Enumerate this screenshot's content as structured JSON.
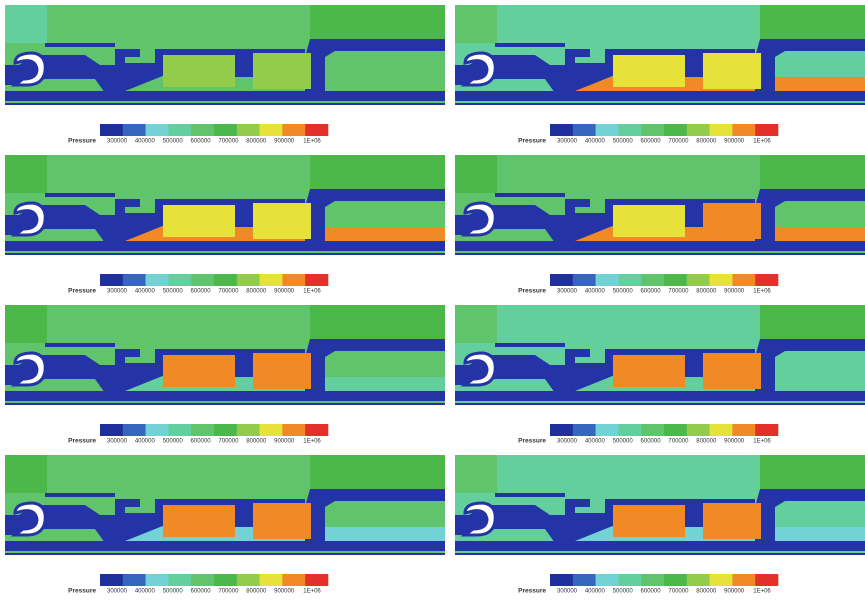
{
  "colorbar_colors": [
    "#1f2f9c",
    "#3766bf",
    "#72d2d6",
    "#63cf9c",
    "#5fc46c",
    "#4cb84a",
    "#93cc4a",
    "#e6e23a",
    "#f18a26",
    "#e3312a"
  ],
  "panels": [
    {
      "legend": {
        "label": "Pressure",
        "ticks": [
          300000,
          400000,
          500000,
          600000,
          700000,
          800000,
          900000,
          {
            "value": 1000000,
            "label": "1E+06"
          }
        ]
      }
    },
    {
      "legend": {
        "label": "Pressure",
        "ticks": [
          300000,
          400000,
          500000,
          600000,
          700000,
          800000,
          900000,
          {
            "value": 1000000,
            "label": "1E+06"
          }
        ]
      }
    },
    {
      "legend": {
        "label": "Pressure",
        "ticks": [
          300000,
          400000,
          500000,
          600000,
          700000,
          800000,
          900000,
          {
            "value": 1000000,
            "label": "1E+06"
          }
        ]
      }
    },
    {
      "legend": {
        "label": "Pressure",
        "ticks": [
          300000,
          400000,
          500000,
          600000,
          700000,
          800000,
          900000,
          {
            "value": 1000000,
            "label": "1E+06"
          }
        ]
      }
    },
    {
      "legend": {
        "label": "Pressure",
        "ticks": [
          300000,
          400000,
          500000,
          600000,
          700000,
          800000,
          900000,
          {
            "value": 1000000,
            "label": "1E+06"
          }
        ]
      }
    },
    {
      "legend": {
        "label": "Pressure",
        "ticks": [
          300000,
          400000,
          500000,
          600000,
          700000,
          800000,
          900000,
          {
            "value": 1000000,
            "label": "1E+06"
          }
        ]
      }
    },
    {
      "legend": {
        "label": "Pressure",
        "ticks": [
          300000,
          400000,
          500000,
          600000,
          700000,
          800000,
          900000,
          {
            "value": 1000000,
            "label": "1E+06"
          }
        ]
      }
    },
    {
      "legend": {
        "label": "Pressure",
        "ticks": [
          300000,
          400000,
          500000,
          600000,
          700000,
          800000,
          900000,
          {
            "value": 1000000,
            "label": "1E+06"
          }
        ]
      }
    }
  ]
}
